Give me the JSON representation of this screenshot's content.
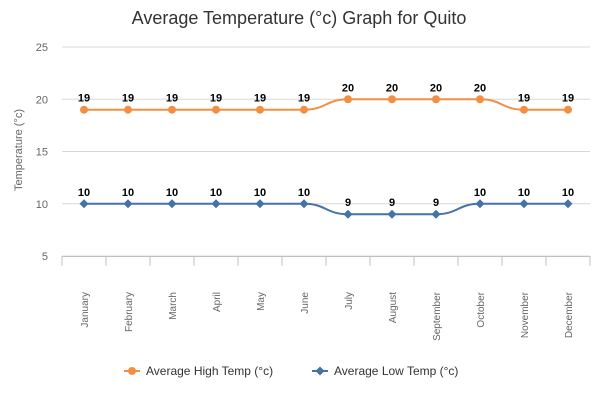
{
  "chart_data": {
    "type": "line",
    "title": "Average Temperature (°c) Graph for Quito",
    "xlabel": "",
    "ylabel": "Temperature (°c)",
    "categories": [
      "January",
      "February",
      "March",
      "April",
      "May",
      "June",
      "July",
      "August",
      "September",
      "October",
      "November",
      "December"
    ],
    "yticks": [
      "5",
      "10",
      "15",
      "20",
      "25"
    ],
    "ylim": [
      5,
      25
    ],
    "grid": true,
    "legend_position": "bottom",
    "series": [
      {
        "name": "Average High Temp (°c)",
        "values": [
          19,
          19,
          19,
          19,
          19,
          19,
          20,
          20,
          20,
          20,
          19,
          19
        ],
        "color": "#f28f43",
        "marker": "circle"
      },
      {
        "name": "Average Low Temp (°c)",
        "values": [
          10,
          10,
          10,
          10,
          10,
          10,
          9,
          9,
          9,
          10,
          10,
          10
        ],
        "color": "#4572a7",
        "marker": "diamond"
      }
    ]
  }
}
